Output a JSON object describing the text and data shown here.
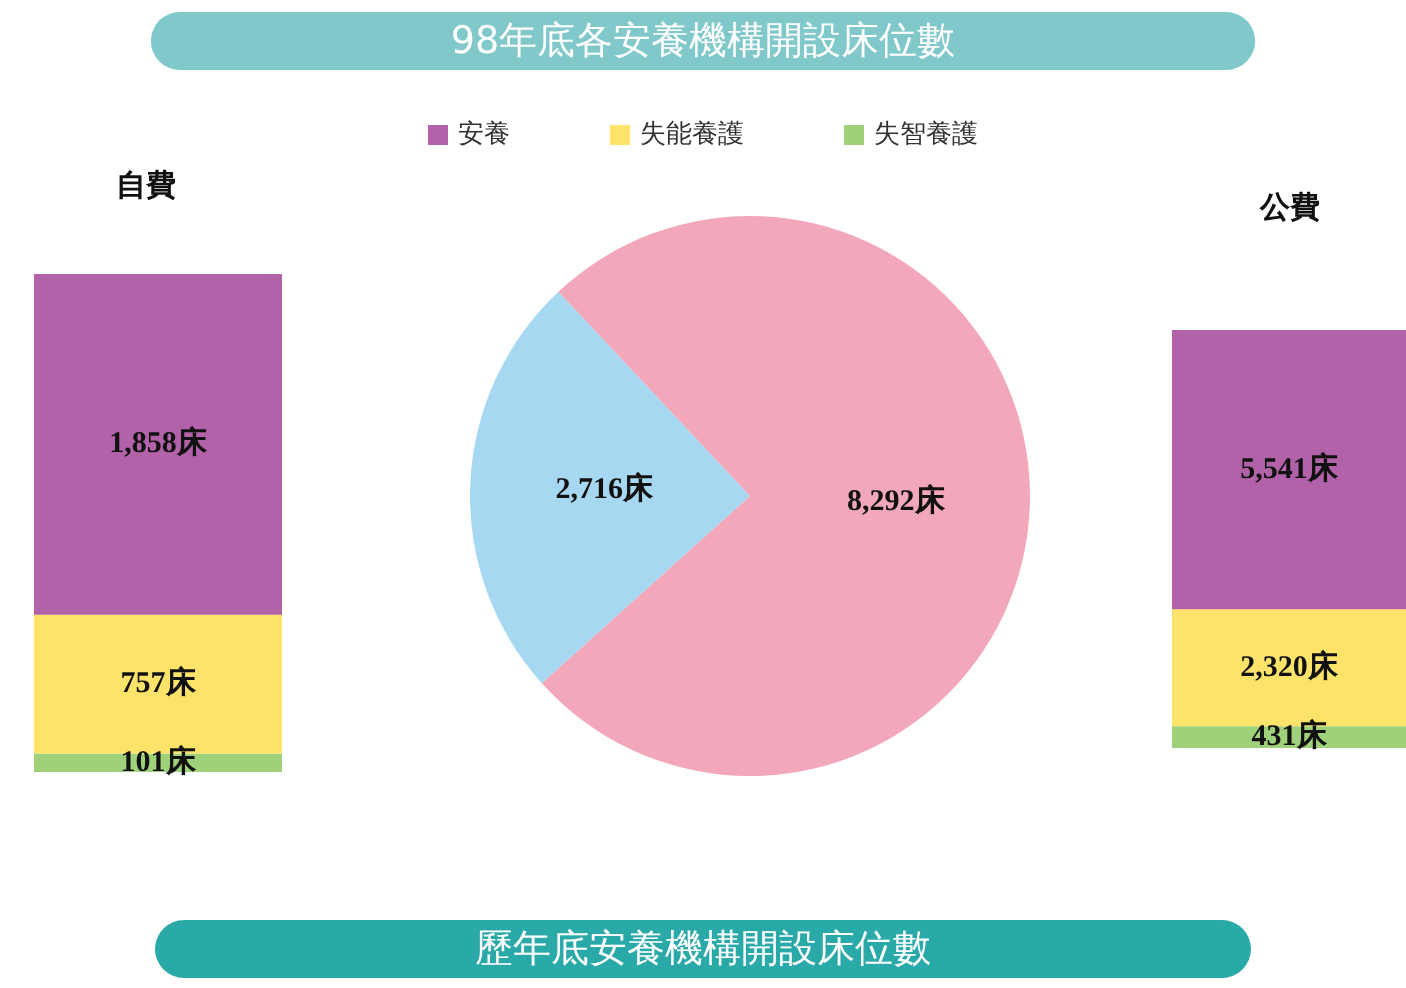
{
  "chart_data": [
    {
      "type": "bar",
      "title": "自費",
      "stacked": true,
      "categories": [
        null
      ],
      "legend": "top",
      "series": [
        {
          "name": "失智養護",
          "color": "#9fd17a",
          "values": [
            101
          ],
          "value_labels": [
            "101床"
          ]
        },
        {
          "name": "失能養護",
          "color": "#fde36a",
          "values": [
            757
          ],
          "value_labels": [
            "757床"
          ]
        },
        {
          "name": "安養",
          "color": "#b262a8",
          "values": [
            1858
          ],
          "value_labels": [
            "1,858床"
          ]
        }
      ]
    },
    {
      "type": "pie",
      "title": "98年底各安養機構開設床位數",
      "categories": [
        null,
        null
      ],
      "values": [
        2716,
        8292
      ],
      "colors": [
        "#a6d8f2",
        "#f2a7ba"
      ],
      "value_labels": [
        "2,716床",
        "8,292床"
      ],
      "annotations": [
        "歷年底安養機構開設床位數"
      ]
    },
    {
      "type": "bar",
      "title": "公費",
      "stacked": true,
      "categories": [
        null
      ],
      "series": [
        {
          "color": "#9fd17a",
          "values": [
            431
          ],
          "value_labels": [
            "431床"
          ]
        },
        {
          "color": "#fde36a",
          "values": [
            2320
          ],
          "value_labels": [
            "2,320床"
          ]
        },
        {
          "color": "#b262a8",
          "values": [
            5541
          ],
          "value_labels": [
            "5,541床"
          ]
        }
      ]
    }
  ]
}
